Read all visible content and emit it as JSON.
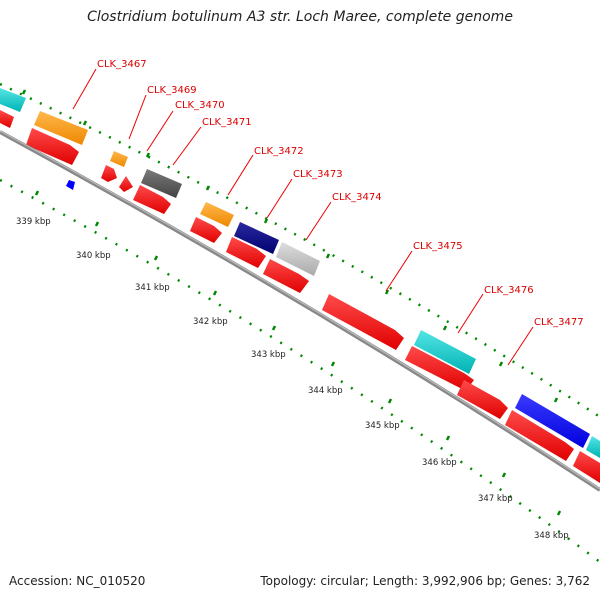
{
  "title": "Clostridium botulinum A3 str. Loch Maree, complete genome",
  "footer": {
    "accession": "Accession: NC_010520",
    "summary": "Topology: circular; Length: 3,992,906 bp; Genes: 3,762"
  },
  "scale_labels": [
    "339 kbp",
    "340 kbp",
    "341 kbp",
    "342 kbp",
    "343 kbp",
    "344 kbp",
    "345 kbp",
    "346 kbp",
    "347 kbp",
    "348 kbp"
  ],
  "gene_labels": [
    "CLK_3467",
    "CLK_3469",
    "CLK_3470",
    "CLK_3471",
    "CLK_3472",
    "CLK_3473",
    "CLK_3474",
    "CLK_3475",
    "CLK_3476",
    "CLK_3477"
  ],
  "colors": {
    "cds_red": "#ff0000",
    "orange": "#ff9900",
    "cyan": "#00cccc",
    "navy": "#000080",
    "blue": "#0000ff",
    "dark_gray": "#555555",
    "light_gray": "#bbbbbb",
    "backbone": "#888888",
    "tick_green": "#007700",
    "label_red": "#dd0000"
  }
}
